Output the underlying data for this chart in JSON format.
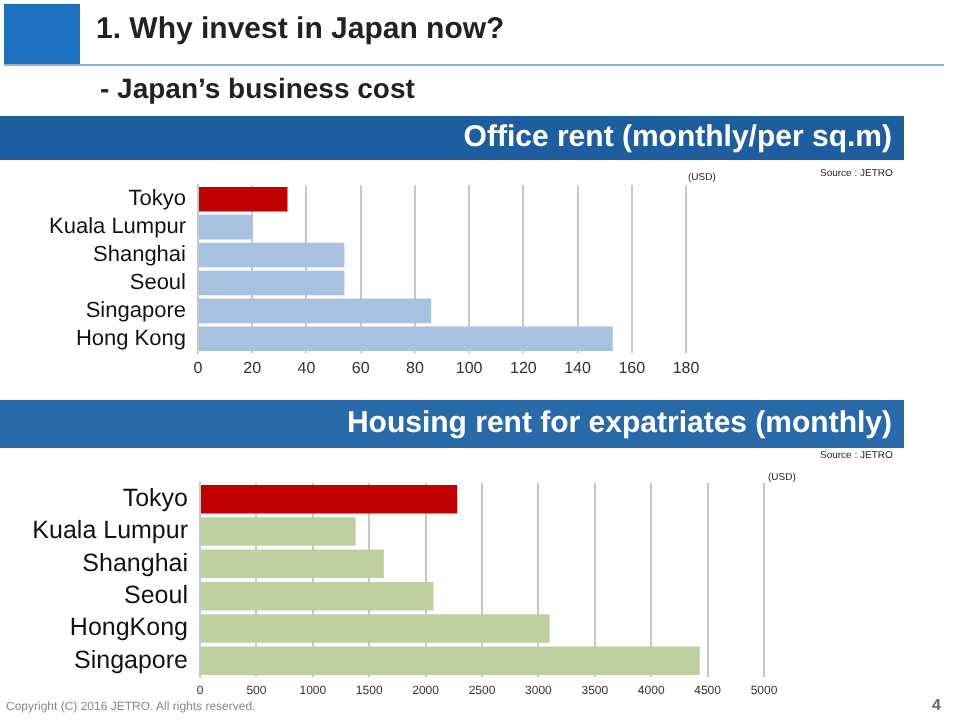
{
  "chart_data": [
    {
      "type": "bar",
      "orientation": "horizontal",
      "title": "Office rent (monthly/per sq.m)",
      "categories": [
        "Tokyo",
        "Kuala Lumpur",
        "Shanghai",
        "Seoul",
        "Singapore",
        "Hong Kong"
      ],
      "values": [
        33,
        20,
        54,
        54,
        86,
        153
      ],
      "colors": [
        "#c00000",
        "#a9c1e0",
        "#a9c1e0",
        "#a9c1e0",
        "#a9c1e0",
        "#a9c1e0"
      ],
      "xlim": [
        0,
        180
      ],
      "xticks": [
        0,
        20,
        40,
        60,
        80,
        100,
        120,
        140,
        160,
        180
      ],
      "grid": "x",
      "annotations": [
        "1. Why invest in Japan now?",
        "- Japan’s business cost",
        "(USD)",
        "Source : JETRO"
      ]
    },
    {
      "type": "bar",
      "orientation": "horizontal",
      "title": "Housing rent for expatriates (monthly)",
      "categories": [
        "Tokyo",
        "Kuala Lumpur",
        "Shanghai",
        "Seoul",
        "HongKong",
        "Singapore"
      ],
      "values": [
        2280,
        1380,
        1630,
        2070,
        3100,
        4430
      ],
      "colors": [
        "#c00000",
        "#bfcf9f",
        "#bfcf9f",
        "#bfcf9f",
        "#bfcf9f",
        "#bfcf9f"
      ],
      "xlim": [
        0,
        5000
      ],
      "xticks": [
        0,
        500,
        1000,
        1500,
        2000,
        2500,
        3000,
        3500,
        4000,
        4500,
        5000
      ],
      "grid": "x",
      "annotations": [
        "(USD)",
        "Source : JETRO",
        "Copyright (C) 2016 JETRO. All rights reserved.",
        "4"
      ]
    }
  ]
}
